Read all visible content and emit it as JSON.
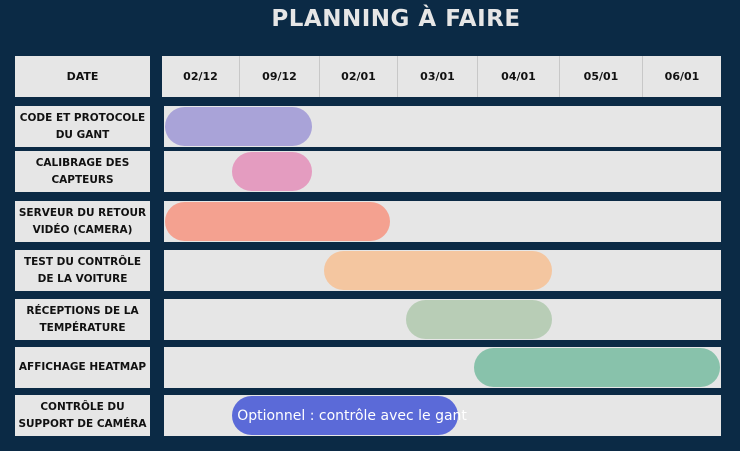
{
  "title": "PLANNING À FAIRE",
  "date_header": "DATE",
  "columns": [
    "02/12",
    "09/12",
    "02/01",
    "03/01",
    "04/01",
    "05/01",
    "06/01"
  ],
  "tasks": [
    {
      "label": "CODE ET PROTOCOLE DU GANT",
      "start_col": 0,
      "end_col": 1.9,
      "color": "#a9a3d8",
      "text": ""
    },
    {
      "label": "CALIBRAGE DES CAPTEURS",
      "start_col": 0.9,
      "end_col": 1.9,
      "color": "#e49cc0",
      "text": ""
    },
    {
      "label": "SERVEUR DU RETOUR VIDÉO (CAMERA)",
      "start_col": 0,
      "end_col": 2.9,
      "color": "#f4a190",
      "text": ""
    },
    {
      "label": "TEST DU CONTRÔLE DE LA VOITURE",
      "start_col": 2.05,
      "end_col": 4.9,
      "color": "#f4c6a0",
      "text": ""
    },
    {
      "label": "RÉCEPTIONS DE LA TEMPÉRATURE",
      "start_col": 3.1,
      "end_col": 4.9,
      "color": "#b8cdb6",
      "text": ""
    },
    {
      "label": "AFFICHAGE HEATMAP",
      "start_col": 3.95,
      "end_col": 7,
      "color": "#88c2ab",
      "text": ""
    },
    {
      "label": "CONTRÔLE DU SUPPORT DE CAMÉRA",
      "start_col": 0.9,
      "end_col": 3.75,
      "color": "#5b6ad8",
      "text": "Optionnel : contrôle avec le gant"
    }
  ]
}
